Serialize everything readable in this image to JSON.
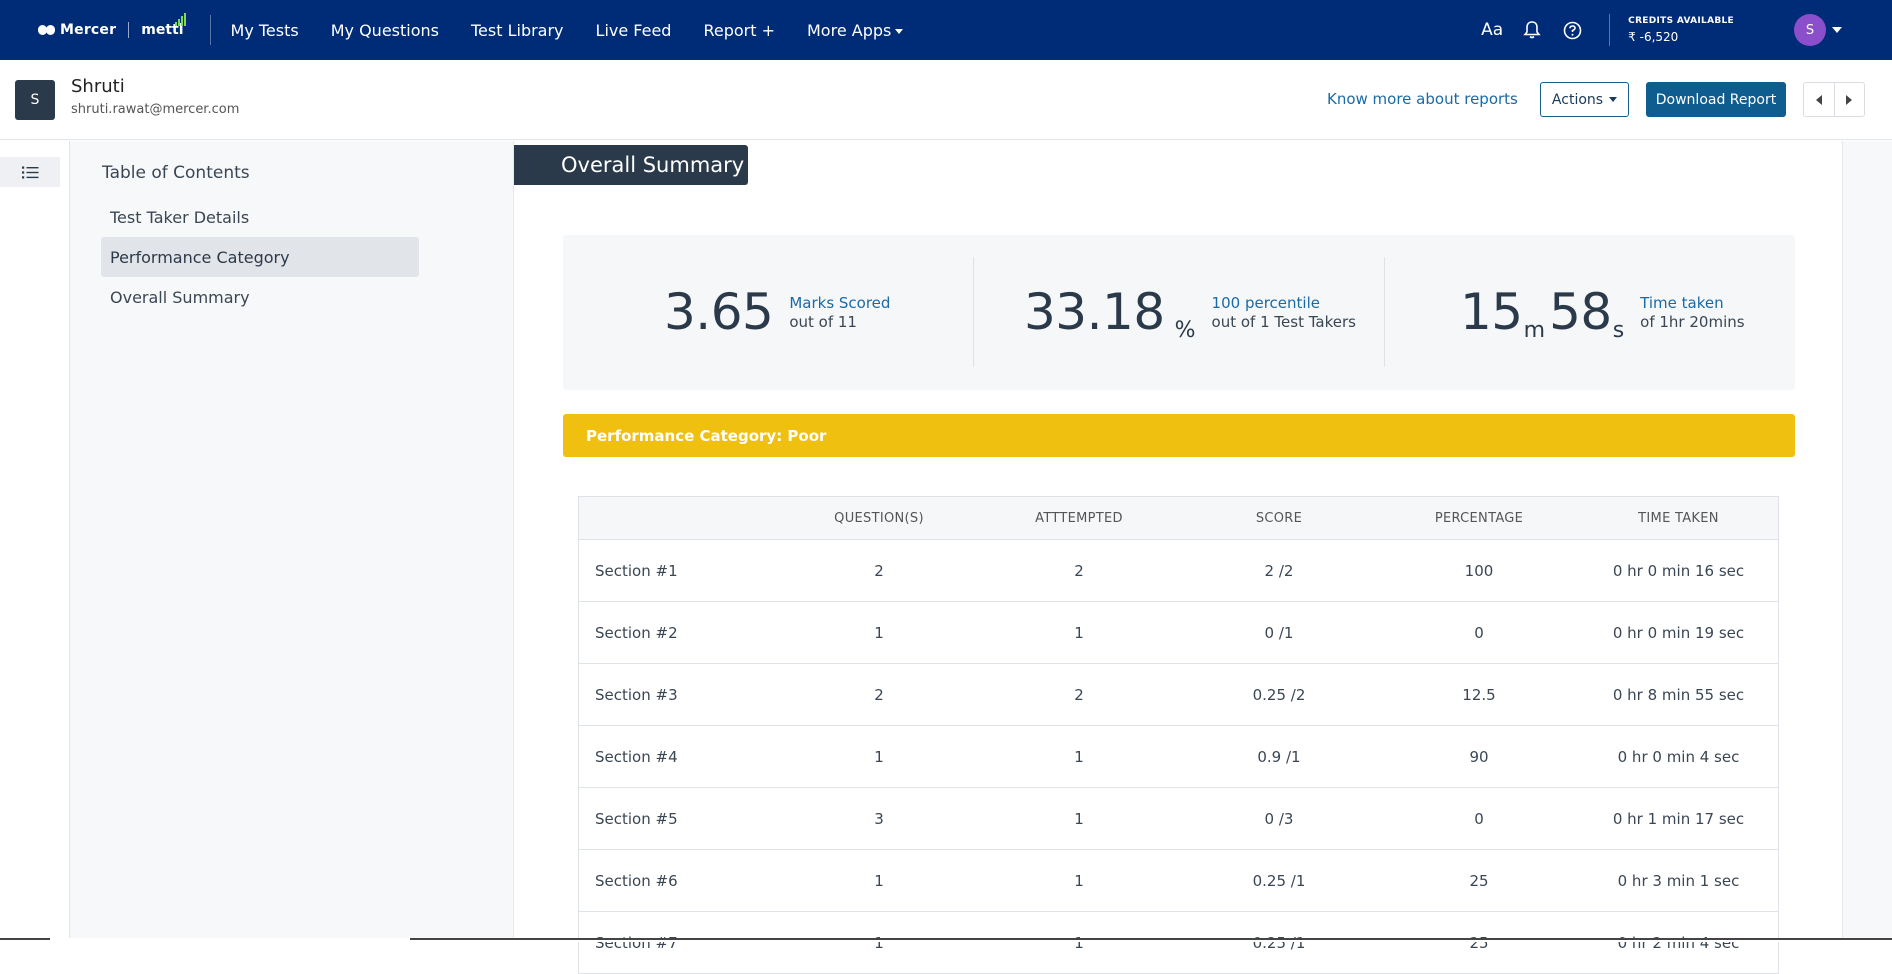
{
  "nav": {
    "brand_left": "Mercer",
    "brand_right": "mettl",
    "items": [
      "My Tests",
      "My Questions",
      "Test Library",
      "Live Feed",
      "Report +",
      "More Apps"
    ],
    "credits_label": "CREDITS AVAILABLE",
    "credits_value": "₹ -6,520",
    "avatar_initial": "S",
    "text_size_icon": "Aa"
  },
  "header": {
    "user_initial": "S",
    "user_name": "Shruti",
    "user_email": "shruti.rawat@mercer.com",
    "know_more": "Know more about reports",
    "actions_label": "Actions",
    "download_label": "Download Report"
  },
  "toc": {
    "title": "Table of Contents",
    "items": [
      "Test Taker Details",
      "Performance Category",
      "Overall Summary"
    ],
    "active_index": 1
  },
  "section_title": "Overall Summary",
  "summary": {
    "marks_value": "3.65",
    "marks_label": "Marks Scored",
    "marks_sub": "out of 11",
    "percent_value": "33.18",
    "percent_unit": "%",
    "percentile_label": "100 percentile",
    "percentile_sub": "out of 1 Test Takers",
    "time_min": "15",
    "time_min_unit": "m",
    "time_sec": "58",
    "time_sec_unit": "s",
    "time_label": "Time taken",
    "time_sub": "of 1hr 20mins"
  },
  "performance_category": "Performance Category: Poor",
  "colors": {
    "nav_bg": "#002c77",
    "accent": "#0f5c8f",
    "category_bar": "#f0c010",
    "link": "#1a6aa6"
  },
  "table": {
    "headers": [
      "",
      "QUESTION(S)",
      "ATTTEMPTED",
      "SCORE",
      "PERCENTAGE",
      "TIME TAKEN"
    ],
    "rows": [
      [
        "Section #1",
        "2",
        "2",
        "2 /2",
        "100",
        "0 hr 0 min 16 sec"
      ],
      [
        "Section #2",
        "1",
        "1",
        "0 /1",
        "0",
        "0 hr 0 min 19 sec"
      ],
      [
        "Section #3",
        "2",
        "2",
        "0.25 /2",
        "12.5",
        "0 hr 8 min 55 sec"
      ],
      [
        "Section #4",
        "1",
        "1",
        "0.9 /1",
        "90",
        "0 hr 0 min 4 sec"
      ],
      [
        "Section #5",
        "3",
        "1",
        "0 /3",
        "0",
        "0 hr 1 min 17 sec"
      ],
      [
        "Section #6",
        "1",
        "1",
        "0.25 /1",
        "25",
        "0 hr 3 min 1 sec"
      ],
      [
        "Section #7",
        "1",
        "1",
        "0.25 /1",
        "25",
        "0 hr 2 min 4 sec"
      ]
    ]
  }
}
